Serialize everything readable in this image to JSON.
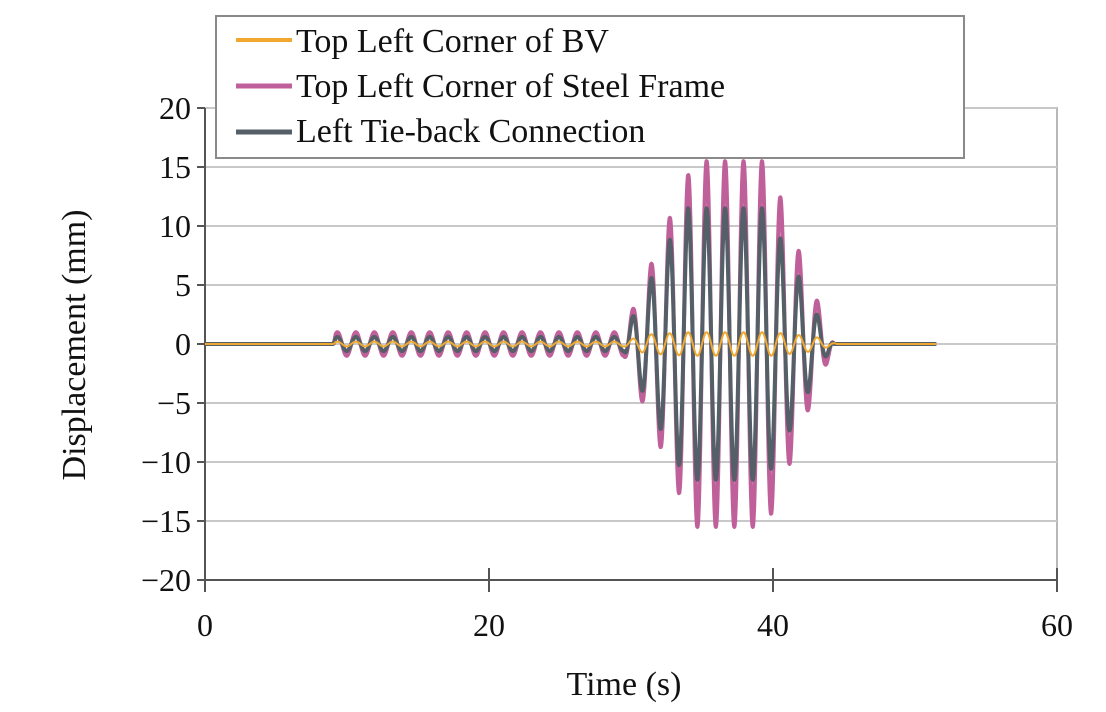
{
  "chart_data": {
    "type": "line",
    "xlabel": "Time (s)",
    "ylabel": "Displacement (mm)",
    "xlim": [
      0,
      60
    ],
    "ylim": [
      -20,
      20
    ],
    "x_ticks": [
      0,
      20,
      40,
      60
    ],
    "y_ticks": [
      20,
      15,
      10,
      5,
      0,
      -5,
      -10,
      -15,
      -20
    ],
    "x_tick_labels": [
      "0",
      "20",
      "40",
      "60"
    ],
    "y_tick_labels": [
      "20",
      "15",
      "10",
      "5",
      "0",
      "−5",
      "−10",
      "−15",
      "−20"
    ],
    "grid": "horizontal",
    "legend_position": "top-left",
    "series": [
      {
        "name": "Top Left Corner of BV",
        "color": "#f0a830",
        "envelope": [
          [
            0,
            0
          ],
          [
            9,
            0
          ],
          [
            9.2,
            0.2
          ],
          [
            29.5,
            0.2
          ],
          [
            31,
            0.8
          ],
          [
            34,
            1.0
          ],
          [
            40,
            1.0
          ],
          [
            43,
            0.6
          ],
          [
            44.5,
            0
          ],
          [
            51.5,
            0
          ]
        ],
        "period_s": 1.3
      },
      {
        "name": "Top Left Corner of Steel Frame",
        "color": "#c0609a",
        "envelope": [
          [
            0,
            0
          ],
          [
            9,
            0
          ],
          [
            9.2,
            1.0
          ],
          [
            29.5,
            1.0
          ],
          [
            29.8,
            2.0
          ],
          [
            30.5,
            4.0
          ],
          [
            31.5,
            7.0
          ],
          [
            32.5,
            10.0
          ],
          [
            33.5,
            13.0
          ],
          [
            34.5,
            15.5
          ],
          [
            39.5,
            15.5
          ],
          [
            40.5,
            12.5
          ],
          [
            41.5,
            9.0
          ],
          [
            42.5,
            5.5
          ],
          [
            43.5,
            2.5
          ],
          [
            44.3,
            0
          ],
          [
            51.5,
            0
          ]
        ],
        "period_s": 1.3
      },
      {
        "name": "Left Tie-back Connection",
        "color": "#555f68",
        "envelope": [
          [
            0,
            0
          ],
          [
            9,
            0
          ],
          [
            9.2,
            0.6
          ],
          [
            29.5,
            0.6
          ],
          [
            30,
            2.0
          ],
          [
            31,
            4.5
          ],
          [
            32,
            7.0
          ],
          [
            33,
            9.5
          ],
          [
            34,
            11.5
          ],
          [
            39.5,
            11.5
          ],
          [
            40.5,
            9.0
          ],
          [
            41.5,
            6.5
          ],
          [
            42.5,
            4.0
          ],
          [
            43.5,
            1.5
          ],
          [
            44.3,
            0
          ],
          [
            51.5,
            0
          ]
        ],
        "period_s": 1.3
      }
    ]
  }
}
